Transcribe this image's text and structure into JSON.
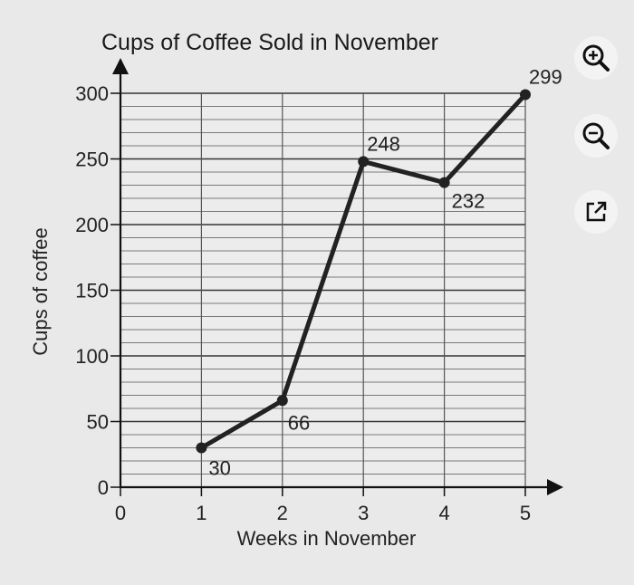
{
  "toolbar": {
    "zoom_in_icon": "zoom-in-icon",
    "zoom_out_icon": "zoom-out-icon",
    "open_external_icon": "open-external-icon"
  },
  "colors": {
    "line": "#222222",
    "grid": "#555555",
    "background": "#e9e9e9"
  },
  "chart_data": {
    "type": "line",
    "title": "Cups of Coffee Sold in November",
    "xlabel": "Weeks in November",
    "ylabel": "Cups of coffee",
    "x": [
      1,
      2,
      3,
      4,
      5
    ],
    "y": [
      30,
      66,
      248,
      232,
      299
    ],
    "data_labels": [
      "30",
      "66",
      "248",
      "232",
      "299"
    ],
    "xticks": [
      "0",
      "1",
      "2",
      "3",
      "4",
      "5"
    ],
    "yticks": [
      "0",
      "50",
      "100",
      "150",
      "200",
      "250",
      "300"
    ],
    "xlim": [
      0,
      5
    ],
    "ylim": [
      0,
      300
    ],
    "minor_y_step": 10,
    "grid": true,
    "legend": "none"
  }
}
